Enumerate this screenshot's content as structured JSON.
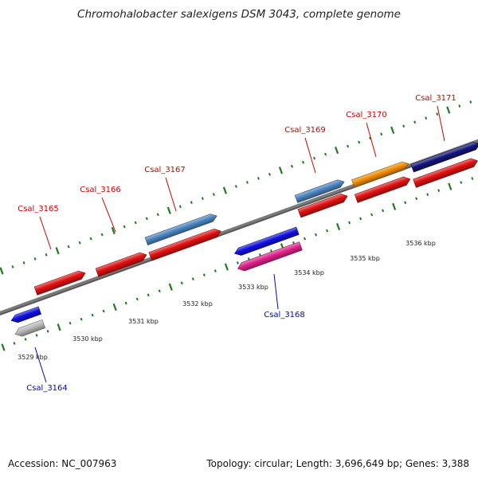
{
  "title": "Chromohalobacter salexigens DSM 3043, complete genome",
  "footer": {
    "accession": "Accession: NC_007963",
    "summary": "Topology: circular; Length: 3,696,649 bp; Genes: 3,388"
  },
  "colors": {
    "backbone": "#7a7a7a",
    "tick": "#1e7a1e",
    "red": "#e01010",
    "steelblue": "#4a84c0",
    "orange": "#f08c00",
    "navy": "#14147a",
    "blue": "#1010e0",
    "pink": "#e0208a",
    "gray": "#b8b8b8",
    "label_forward": "#cc0000",
    "label_reverse": "#0000cc"
  },
  "scale_labels": [
    "3529 kbp",
    "3530 kbp",
    "3531 kbp",
    "3532 kbp",
    "3533 kbp",
    "3534 kbp",
    "3535 kbp",
    "3536 kbp"
  ],
  "gene_labels": [
    {
      "name": "Csal_3165",
      "strand": "forward"
    },
    {
      "name": "Csal_3166",
      "strand": "forward"
    },
    {
      "name": "Csal_3167",
      "strand": "forward"
    },
    {
      "name": "Csal_3169",
      "strand": "forward"
    },
    {
      "name": "Csal_3170",
      "strand": "forward"
    },
    {
      "name": "Csal_3171",
      "strand": "forward"
    },
    {
      "name": "Csal_3168",
      "strand": "reverse"
    },
    {
      "name": "Csal_3164",
      "strand": "reverse"
    }
  ],
  "features": [
    {
      "row": "forward-outer",
      "color": "steelblue",
      "direction": "forward"
    },
    {
      "row": "forward-outer",
      "color": "steelblue",
      "direction": "forward"
    },
    {
      "row": "forward-outer",
      "color": "orange",
      "direction": "forward"
    },
    {
      "row": "forward-outer",
      "color": "navy",
      "direction": "forward"
    },
    {
      "row": "forward-inner",
      "color": "red",
      "direction": "forward"
    },
    {
      "row": "forward-inner",
      "color": "red",
      "direction": "forward"
    },
    {
      "row": "forward-inner",
      "color": "red",
      "direction": "forward"
    },
    {
      "row": "forward-inner",
      "color": "red",
      "direction": "forward"
    },
    {
      "row": "forward-inner",
      "color": "red",
      "direction": "forward"
    },
    {
      "row": "forward-inner",
      "color": "red",
      "direction": "forward"
    },
    {
      "row": "reverse-inner",
      "color": "blue",
      "direction": "reverse"
    },
    {
      "row": "reverse-outer",
      "color": "pink",
      "direction": "reverse"
    },
    {
      "row": "reverse-inner",
      "color": "blue",
      "direction": "reverse"
    },
    {
      "row": "reverse-outer",
      "color": "gray",
      "direction": "reverse"
    }
  ]
}
